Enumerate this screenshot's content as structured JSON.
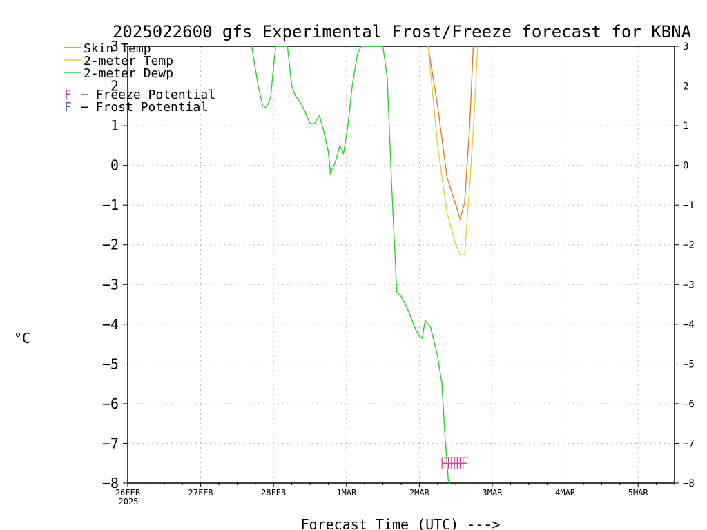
{
  "chart_data": {
    "type": "line",
    "title": "2025022600 gfs Experimental Frost/Freeze forecast for KBNA",
    "xlabel": "Forecast Time (UTC) --->",
    "ylabel": "°C",
    "ylim": [
      -8,
      3
    ],
    "xlim_days": [
      0,
      7.5
    ],
    "grid": true,
    "y_ticks": [
      "−8",
      "−7",
      "−6",
      "−5",
      "−4",
      "−3",
      "−2",
      "−1",
      "0",
      "1",
      "2",
      "3"
    ],
    "y_tick_values": [
      -8,
      -7,
      -6,
      -5,
      -4,
      -3,
      -2,
      -1,
      0,
      1,
      2,
      3
    ],
    "x_ticks": [
      "26FEB",
      "27FEB",
      "28FEB",
      "1MAR",
      "2MAR",
      "3MAR",
      "4MAR",
      "5MAR"
    ],
    "x_tick_values": [
      0,
      1,
      2,
      3,
      4,
      5,
      6,
      7
    ],
    "x_year": "2025",
    "legend_position": "top-left",
    "series": [
      {
        "name": "Skin Temp",
        "color": "#e07a2e",
        "points": [
          [
            4.12,
            3.0
          ],
          [
            4.25,
            1.5
          ],
          [
            4.38,
            -0.3
          ],
          [
            4.5,
            -1.0
          ],
          [
            4.56,
            -1.35
          ],
          [
            4.62,
            -0.95
          ],
          [
            4.69,
            1.0
          ],
          [
            4.74,
            3.0
          ]
        ]
      },
      {
        "name": "2-meter Temp",
        "color": "#e8cc3c",
        "points": [
          [
            4.12,
            3.0
          ],
          [
            4.25,
            0.5
          ],
          [
            4.38,
            -1.2
          ],
          [
            4.5,
            -2.0
          ],
          [
            4.56,
            -2.25
          ],
          [
            4.62,
            -2.25
          ],
          [
            4.69,
            -0.5
          ],
          [
            4.75,
            1.2
          ],
          [
            4.8,
            3.0
          ]
        ]
      },
      {
        "name": "2-meter Dewp",
        "color": "#2bd02b",
        "points": [
          [
            1.7,
            3.0
          ],
          [
            1.79,
            2.0
          ],
          [
            1.85,
            1.5
          ],
          [
            1.9,
            1.45
          ],
          [
            1.96,
            1.7
          ],
          [
            2.0,
            2.5
          ],
          [
            2.03,
            3.0
          ],
          [
            2.19,
            3.0
          ],
          [
            2.25,
            2.0
          ],
          [
            2.3,
            1.75
          ],
          [
            2.38,
            1.55
          ],
          [
            2.43,
            1.35
          ],
          [
            2.5,
            1.05
          ],
          [
            2.56,
            1.05
          ],
          [
            2.63,
            1.25
          ],
          [
            2.69,
            0.85
          ],
          [
            2.75,
            0.35
          ],
          [
            2.78,
            -0.2
          ],
          [
            2.85,
            0.1
          ],
          [
            2.91,
            0.5
          ],
          [
            2.96,
            0.3
          ],
          [
            3.02,
            1.0
          ],
          [
            3.08,
            2.0
          ],
          [
            3.15,
            2.8
          ],
          [
            3.19,
            2.95
          ],
          [
            3.2,
            3.0
          ],
          [
            3.5,
            3.0
          ],
          [
            3.56,
            2.2
          ],
          [
            3.62,
            -0.5
          ],
          [
            3.69,
            -3.2
          ],
          [
            3.75,
            -3.3
          ],
          [
            3.81,
            -3.5
          ],
          [
            3.88,
            -3.8
          ],
          [
            3.94,
            -4.1
          ],
          [
            4.0,
            -4.3
          ],
          [
            4.04,
            -4.35
          ],
          [
            4.08,
            -3.9
          ],
          [
            4.12,
            -4.0
          ],
          [
            4.15,
            -4.05
          ],
          [
            4.19,
            -4.35
          ],
          [
            4.25,
            -4.8
          ],
          [
            4.31,
            -5.5
          ],
          [
            4.35,
            -6.8
          ],
          [
            4.38,
            -7.5
          ],
          [
            4.4,
            -8.0
          ]
        ]
      }
    ],
    "freeze_marks": {
      "label": "F",
      "color": "#cc3399",
      "x": [
        4.31,
        4.35,
        4.4,
        4.44,
        4.48,
        4.52,
        4.56,
        4.6
      ],
      "y": -7.5
    },
    "frost_marks": {
      "label": "F",
      "color": "#4a5ad6",
      "x": [],
      "y": -7.5
    },
    "legend": {
      "freeze_letter": "F",
      "freeze_label": "− Freeze Potential",
      "frost_letter": "F",
      "frost_label": "− Frost Potential"
    }
  }
}
